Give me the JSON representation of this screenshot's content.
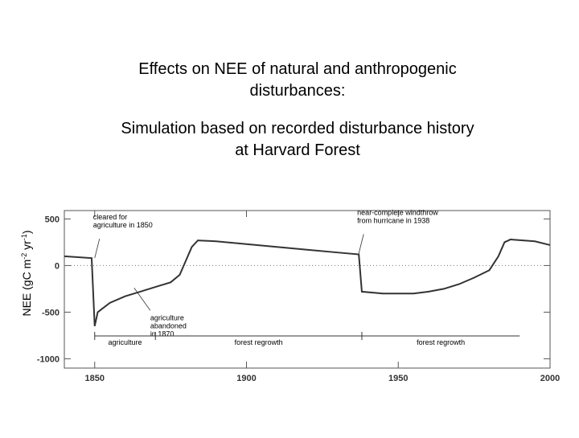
{
  "chart_data": {
    "type": "line",
    "title_lines": [
      "Effects on NEE of natural and anthropogenic",
      "disturbances:"
    ],
    "subtitle_lines": [
      "Simulation based on recorded disturbance history",
      "at Harvard Forest"
    ],
    "y_label_parts": [
      "NEE (gC m",
      "-2",
      " yr",
      "-1",
      ")"
    ],
    "x": [
      1840,
      1849,
      1850,
      1851,
      1855,
      1860,
      1865,
      1870,
      1875,
      1878,
      1880,
      1882,
      1884,
      1890,
      1900,
      1910,
      1920,
      1930,
      1937,
      1938,
      1945,
      1955,
      1960,
      1965,
      1970,
      1975,
      1980,
      1983,
      1985,
      1987,
      1995,
      2000
    ],
    "values": [
      100,
      80,
      -650,
      -500,
      -400,
      -330,
      -280,
      -230,
      -180,
      -100,
      50,
      200,
      270,
      260,
      230,
      200,
      170,
      140,
      120,
      -280,
      -300,
      -300,
      -280,
      -250,
      -200,
      -130,
      -50,
      100,
      250,
      280,
      260,
      220
    ],
    "color": "#333333",
    "xlim": [
      1840,
      2000
    ],
    "ylim": [
      -1100,
      590
    ],
    "xticks": [
      1850,
      1900,
      1950,
      2000
    ],
    "yticks": [
      500,
      0,
      -500,
      -1000
    ],
    "annotations": [
      {
        "lines": [
          "cleared for",
          "agriculture in 1850"
        ],
        "x": 1850,
        "y": 80
      },
      {
        "lines": [
          "agriculture",
          "abandoned",
          "in 1870"
        ],
        "x": 1863,
        "y": -240
      },
      {
        "lines": [
          "near-complete windthrow",
          "from hurricane in 1938"
        ],
        "x": 1937,
        "y": 130
      }
    ],
    "periods": [
      {
        "label": "agriculture",
        "start": 1850,
        "end": 1870
      },
      {
        "label": "forest regrowth",
        "start": 1870,
        "end": 1938
      },
      {
        "label": "forest regrowth",
        "start": 1938,
        "end": 1990
      }
    ]
  }
}
